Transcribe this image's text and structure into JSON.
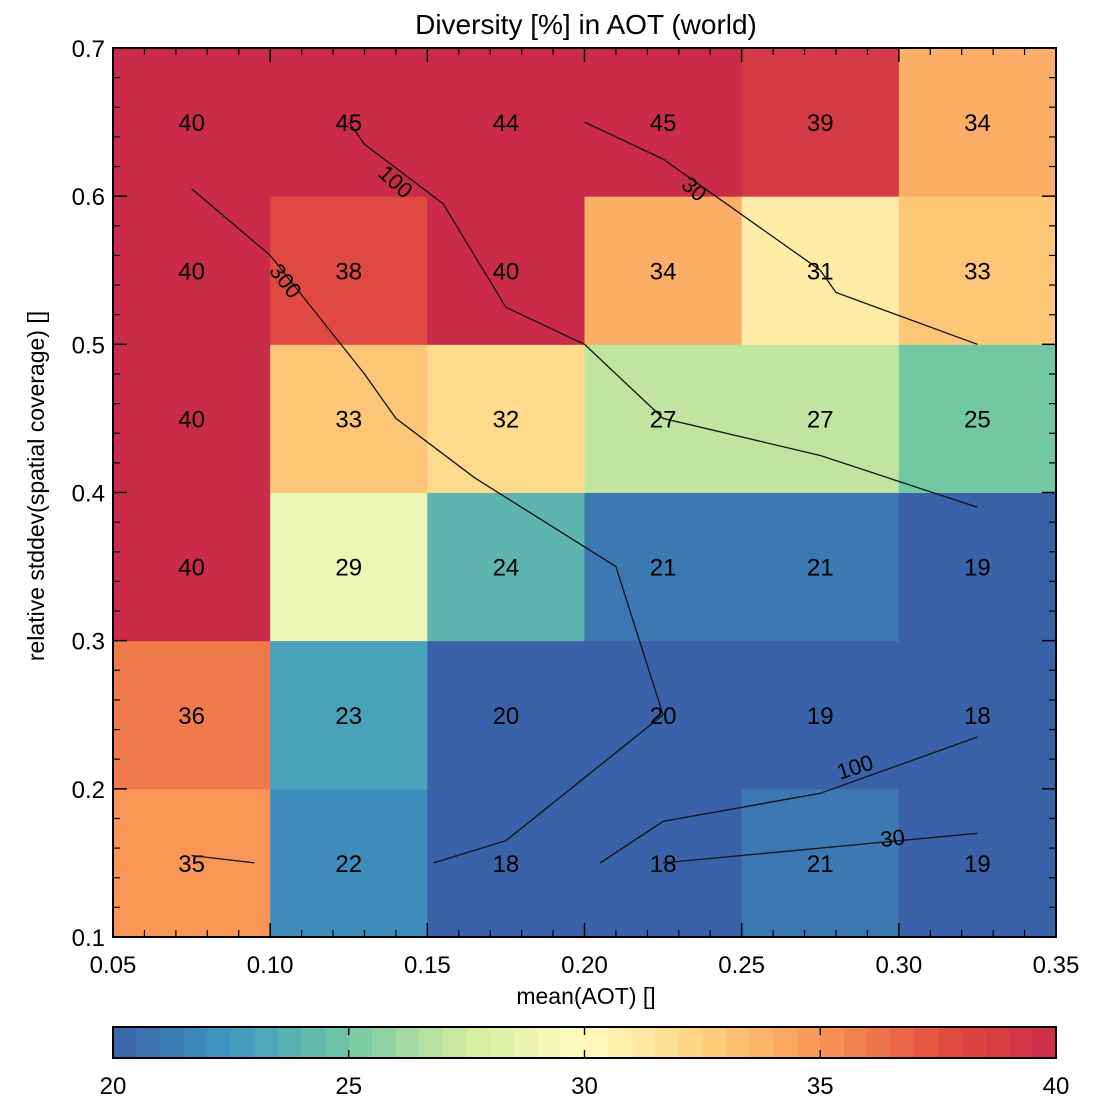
{
  "chart_data": {
    "type": "heatmap",
    "title": "Diversity [%] in AOT (world)",
    "xlabel": "mean(AOT) []",
    "ylabel": "relative stddev(spatial coverage) []",
    "xlim": [
      0.05,
      0.35
    ],
    "ylim": [
      0.1,
      0.7
    ],
    "x_edges": [
      0.05,
      0.1,
      0.15,
      0.2,
      0.25,
      0.3,
      0.35
    ],
    "y_edges": [
      0.1,
      0.2,
      0.3,
      0.4,
      0.5,
      0.6,
      0.7
    ],
    "x_tick_values": [
      0.05,
      0.1,
      0.15,
      0.2,
      0.25,
      0.3,
      0.35
    ],
    "x_tick_labels": [
      "0.05",
      "0.10",
      "0.15",
      "0.20",
      "0.25",
      "0.30",
      "0.35"
    ],
    "y_tick_values": [
      0.1,
      0.2,
      0.3,
      0.4,
      0.5,
      0.6,
      0.7
    ],
    "y_tick_labels": [
      "0.1",
      "0.2",
      "0.3",
      "0.4",
      "0.5",
      "0.6",
      "0.7"
    ],
    "values_rows_bottom_to_top": [
      [
        35,
        22,
        18,
        18,
        21,
        19
      ],
      [
        36,
        23,
        20,
        20,
        19,
        18
      ],
      [
        40,
        29,
        24,
        21,
        21,
        19
      ],
      [
        40,
        33,
        32,
        27,
        27,
        25
      ],
      [
        40,
        38,
        40,
        34,
        31,
        33
      ],
      [
        40,
        45,
        44,
        45,
        39,
        34
      ]
    ],
    "cell_labels_rows_bottom_to_top": [
      [
        "35",
        "22",
        "18",
        "18",
        "21",
        "19"
      ],
      [
        "36",
        "23",
        "20",
        "20",
        "19",
        "18"
      ],
      [
        "40",
        "29",
        "24",
        "21",
        "21",
        "19"
      ],
      [
        "40",
        "33",
        "32",
        "27",
        "27",
        "25"
      ],
      [
        "40",
        "38",
        "40",
        "34",
        "31",
        "33"
      ],
      [
        "40",
        "45",
        "44",
        "45",
        "39",
        "34"
      ]
    ],
    "colorbar": {
      "range": [
        20,
        40
      ],
      "tick_values": [
        20,
        25,
        30,
        35,
        40
      ],
      "tick_labels": [
        "20",
        "25",
        "30",
        "35",
        "40"
      ],
      "colormap": "spectral",
      "colormap_stops": [
        "#3a62a9",
        "#3f98c0",
        "#73c8a4",
        "#d4eca0",
        "#fffcc0",
        "#fdd27f",
        "#f99655",
        "#e4503f",
        "#ca2b49"
      ]
    },
    "contours": [
      {
        "label": "300",
        "points": [
          [
            0.075,
            0.605
          ],
          [
            0.1,
            0.56
          ],
          [
            0.13,
            0.48
          ],
          [
            0.14,
            0.45
          ],
          [
            0.165,
            0.41
          ],
          [
            0.18,
            0.39
          ],
          [
            0.21,
            0.35
          ],
          [
            0.225,
            0.25
          ]
        ]
      },
      {
        "label": "100",
        "points": [
          [
            0.125,
            0.65
          ],
          [
            0.13,
            0.635
          ],
          [
            0.155,
            0.595
          ],
          [
            0.175,
            0.525
          ],
          [
            0.2,
            0.5
          ],
          [
            0.225,
            0.45
          ],
          [
            0.275,
            0.425
          ],
          [
            0.325,
            0.39
          ]
        ]
      },
      {
        "label": "30",
        "points": [
          [
            0.2,
            0.65
          ],
          [
            0.225,
            0.625
          ],
          [
            0.275,
            0.55
          ],
          [
            0.28,
            0.535
          ],
          [
            0.325,
            0.5
          ]
        ]
      },
      {
        "label": "",
        "points": [
          [
            0.075,
            0.155
          ],
          [
            0.095,
            0.15
          ]
        ]
      },
      {
        "label": "",
        "points": [
          [
            0.152,
            0.15
          ],
          [
            0.175,
            0.165
          ],
          [
            0.225,
            0.25
          ]
        ]
      },
      {
        "label": "100",
        "points": [
          [
            0.205,
            0.15
          ],
          [
            0.225,
            0.178
          ],
          [
            0.275,
            0.197
          ],
          [
            0.325,
            0.235
          ]
        ]
      },
      {
        "label": "30",
        "points": [
          [
            0.225,
            0.15
          ],
          [
            0.275,
            0.16
          ],
          [
            0.325,
            0.17
          ]
        ]
      }
    ],
    "contour_label_positions": [
      {
        "text": "300",
        "x": 0.105,
        "y": 0.543,
        "angle": 52
      },
      {
        "text": "100",
        "x": 0.14,
        "y": 0.61,
        "angle": 42
      },
      {
        "text": "30",
        "x": 0.235,
        "y": 0.605,
        "angle": 42
      },
      {
        "text": "100",
        "x": 0.286,
        "y": 0.215,
        "angle": -18
      },
      {
        "text": "30",
        "x": 0.298,
        "y": 0.167,
        "angle": -6
      }
    ]
  }
}
